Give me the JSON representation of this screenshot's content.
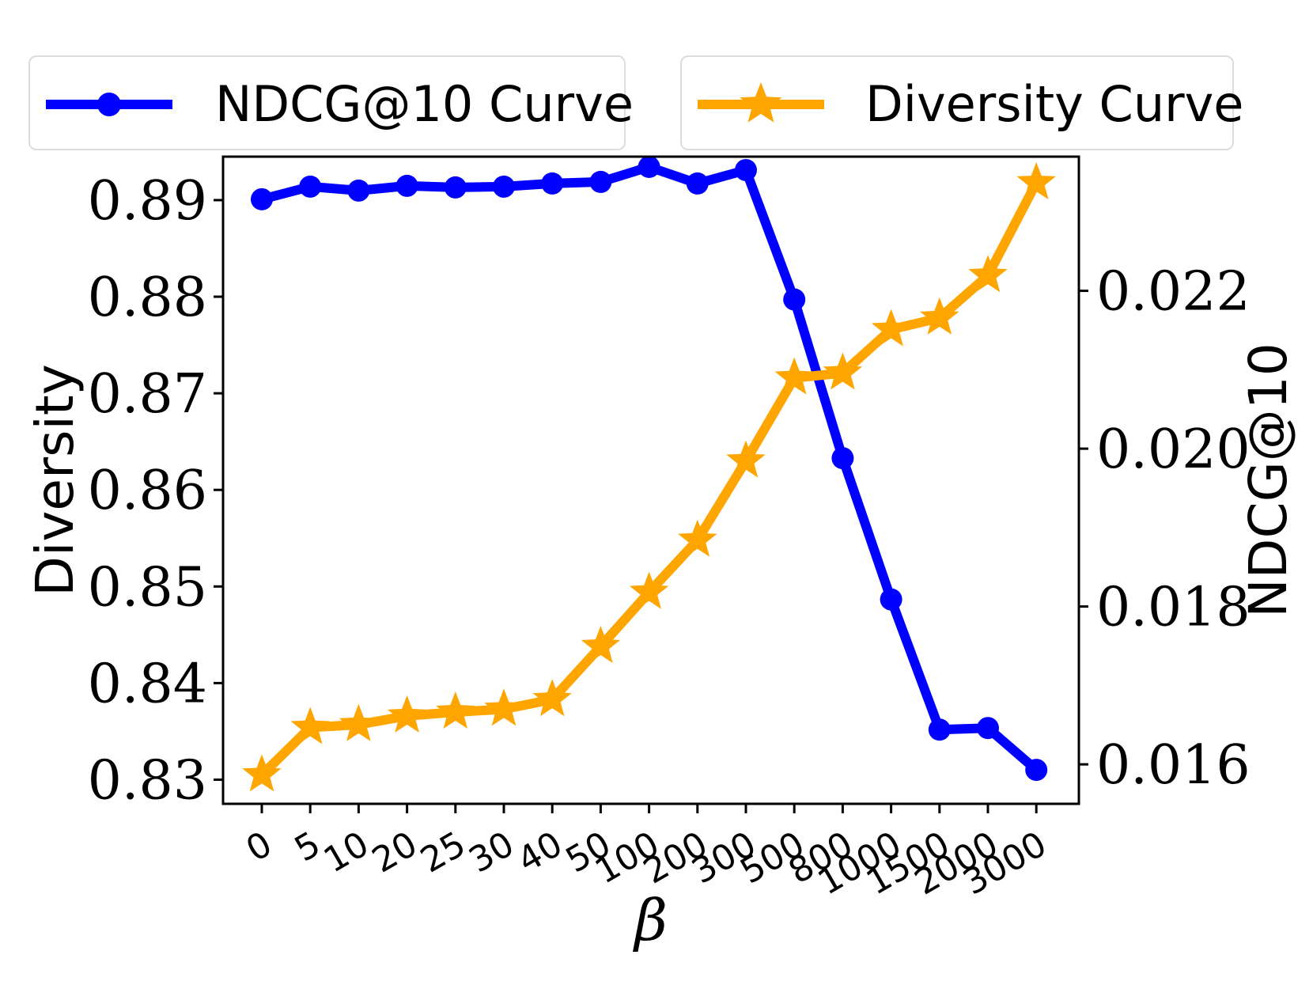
{
  "legend": {
    "ndcg_label": "NDCG@10 Curve",
    "diversity_label": "Diversity Curve"
  },
  "chart_data": {
    "type": "line",
    "xlabel": "β",
    "ylabel_left": "Diversity",
    "ylabel_right": "NDCG@10",
    "categories": [
      "0",
      "5",
      "10",
      "20",
      "25",
      "30",
      "40",
      "50",
      "100",
      "200",
      "300",
      "500",
      "800",
      "1000",
      "1500",
      "2000",
      "3000"
    ],
    "left_axis": {
      "ylim": [
        0.8275,
        0.8945
      ],
      "ticks": [
        0.83,
        0.84,
        0.85,
        0.86,
        0.87,
        0.88,
        0.89
      ],
      "tick_labels": [
        "0.83",
        "0.84",
        "0.85",
        "0.86",
        "0.87",
        "0.88",
        "0.89"
      ]
    },
    "right_axis": {
      "ylim": [
        0.0155,
        0.0237
      ],
      "ticks": [
        0.016,
        0.018,
        0.02,
        0.022
      ],
      "tick_labels": [
        "0.016",
        "0.018",
        "0.020",
        "0.022"
      ]
    },
    "series": [
      {
        "name": "NDCG@10 Curve",
        "axis": "right",
        "color": "#0000ff",
        "marker": "circle",
        "values": [
          0.02316,
          0.02332,
          0.02327,
          0.02333,
          0.02331,
          0.02332,
          0.02336,
          0.02338,
          0.02357,
          0.02336,
          0.02353,
          0.02189,
          0.01988,
          0.01809,
          0.01644,
          0.01646,
          0.01593
        ]
      },
      {
        "name": "Diversity Curve",
        "axis": "left",
        "color": "#ffa500",
        "marker": "star",
        "values": [
          0.8305,
          0.8354,
          0.8357,
          0.8366,
          0.837,
          0.8373,
          0.8383,
          0.8438,
          0.8494,
          0.8548,
          0.863,
          0.8716,
          0.8721,
          0.8766,
          0.8778,
          0.8822,
          0.8918
        ]
      }
    ]
  }
}
